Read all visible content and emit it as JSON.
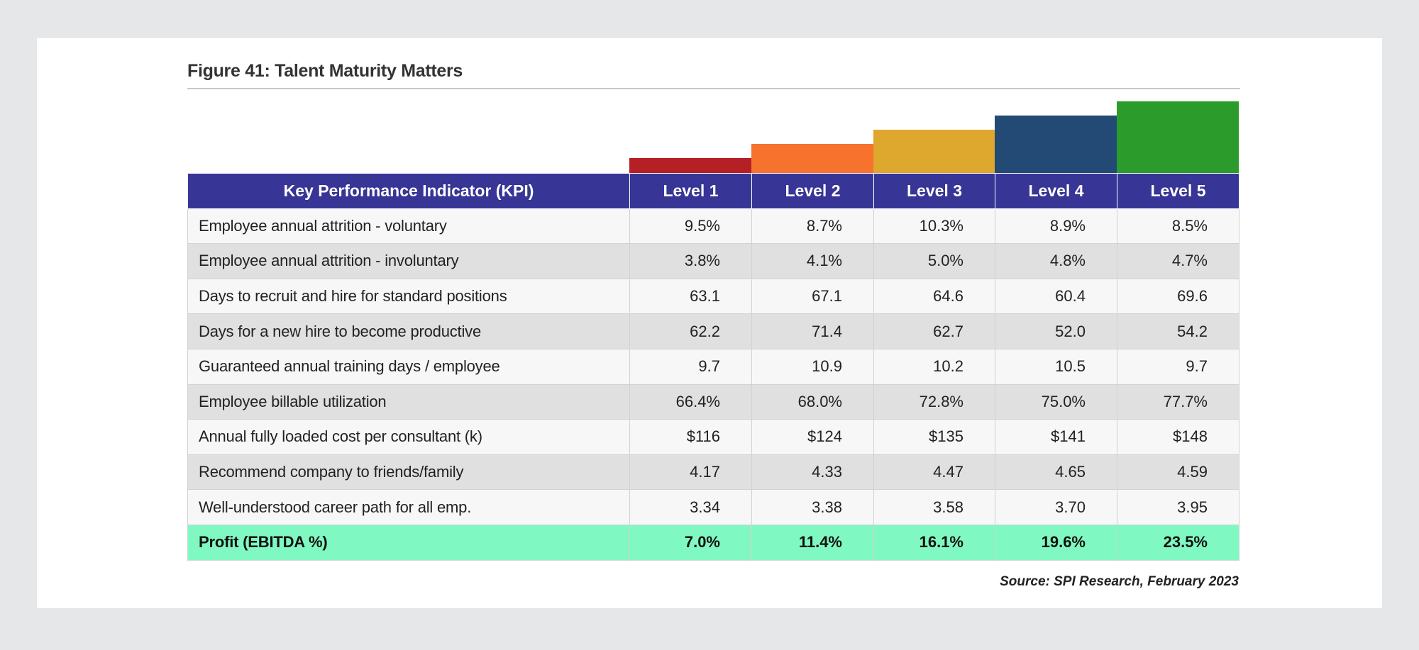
{
  "figure": {
    "title": "Figure 41:  Talent Maturity Matters",
    "source": "Source: SPI Research, February 2023"
  },
  "colors": {
    "header_bg": "#373596",
    "total_row_bg": "#80f8c2",
    "level_1": "#b52025",
    "level_2": "#f7722d",
    "level_3": "#dea72e",
    "level_4": "#224a74",
    "level_5": "#2b9c2c"
  },
  "table": {
    "header": {
      "kpi": "Key Performance Indicator (KPI)",
      "levels": [
        "Level 1",
        "Level 2",
        "Level 3",
        "Level 4",
        "Level 5"
      ]
    },
    "rows": [
      {
        "label": "Employee annual attrition - voluntary",
        "values": [
          "9.5%",
          "8.7%",
          "10.3%",
          "8.9%",
          "8.5%"
        ]
      },
      {
        "label": "Employee annual attrition - involuntary",
        "values": [
          "3.8%",
          "4.1%",
          "5.0%",
          "4.8%",
          "4.7%"
        ]
      },
      {
        "label": "Days to recruit and hire for standard positions",
        "values": [
          "63.1",
          "67.1",
          "64.6",
          "60.4",
          "69.6"
        ]
      },
      {
        "label": "Days for a new hire to become productive",
        "values": [
          "62.2",
          "71.4",
          "62.7",
          "52.0",
          "54.2"
        ]
      },
      {
        "label": "Guaranteed annual training days / employee",
        "values": [
          "9.7",
          "10.9",
          "10.2",
          "10.5",
          "9.7"
        ]
      },
      {
        "label": "Employee billable utilization",
        "values": [
          "66.4%",
          "68.0%",
          "72.8%",
          "75.0%",
          "77.7%"
        ]
      },
      {
        "label": "Annual fully loaded cost per consultant (k)",
        "values": [
          "$116",
          "$124",
          "$135",
          "$141",
          "$148"
        ]
      },
      {
        "label": "Recommend company to friends/family",
        "values": [
          "4.17",
          "4.33",
          "4.47",
          "4.65",
          "4.59"
        ]
      },
      {
        "label": "Well-understood career path for all emp.",
        "values": [
          "3.34",
          "3.38",
          "3.58",
          "3.70",
          "3.95"
        ]
      }
    ],
    "total": {
      "label": "Profit (EBITDA %)",
      "values": [
        "7.0%",
        "11.4%",
        "16.1%",
        "19.6%",
        "23.5%"
      ]
    }
  }
}
